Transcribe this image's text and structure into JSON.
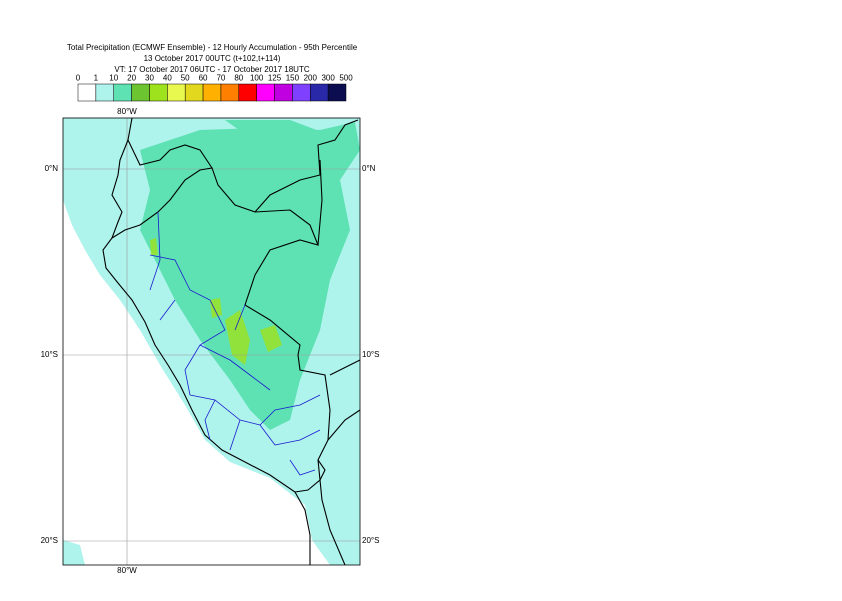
{
  "header": {
    "title": "Total Precipitation (ECMWF Ensemble) - 12 Hourly Accumulation - 95th Percentile",
    "base_time": "13 October 2017 00UTC (t+102,t+114)",
    "valid_time": "VT: 17 October 2017 06UTC - 17 October 2017 18UTC"
  },
  "legend": {
    "labels": [
      0,
      1,
      10,
      20,
      30,
      40,
      50,
      60,
      70,
      80,
      100,
      125,
      150,
      200,
      300,
      500
    ],
    "colors": [
      "#ffffff",
      "#aef3ec",
      "#5ee2b4",
      "#6cc430",
      "#9de21c",
      "#e8f84e",
      "#e2d81e",
      "#ffb000",
      "#ff8000",
      "#ff0000",
      "#ff00ff",
      "#c000e0",
      "#8040ff",
      "#2828a8",
      "#0c0c50"
    ]
  },
  "map": {
    "lon_labels": [
      "80°W"
    ],
    "lat_labels": [
      "0°N",
      "10°S",
      "20°S"
    ]
  }
}
